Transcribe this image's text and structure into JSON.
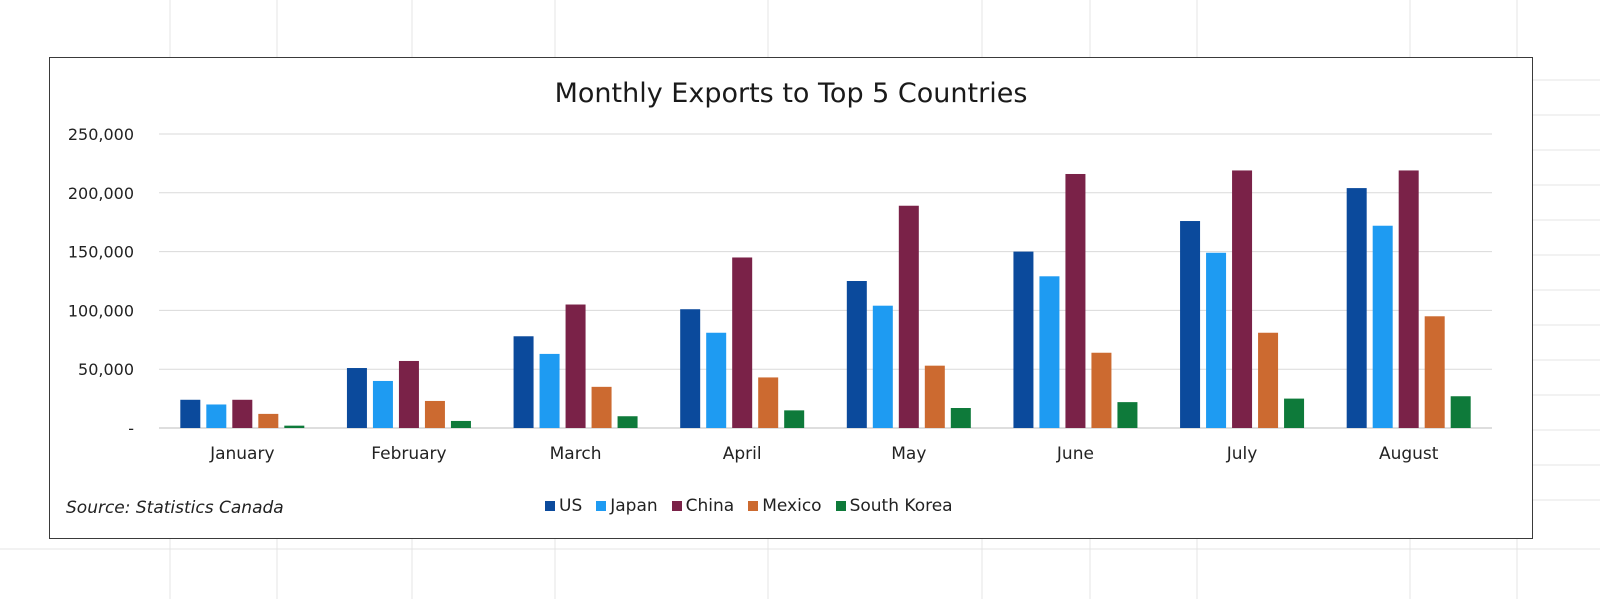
{
  "chart_data": {
    "type": "bar",
    "title": "Monthly Exports to Top 5 Countries",
    "source_note": "Source: Statistics Canada",
    "categories": [
      "January",
      "February",
      "March",
      "April",
      "May",
      "June",
      "July",
      "August"
    ],
    "y_tick_labels": [
      "-",
      "50,000",
      "100,000",
      "150,000",
      "200,000",
      "250,000"
    ],
    "y_tick_values": [
      0,
      50000,
      100000,
      150000,
      200000,
      250000
    ],
    "ylim": [
      0,
      250000
    ],
    "grid": true,
    "legend_position": "bottom",
    "series": [
      {
        "name": "US",
        "color": "#0b4a9c",
        "values": [
          24000,
          51000,
          78000,
          101000,
          125000,
          150000,
          176000,
          204000
        ]
      },
      {
        "name": "Japan",
        "color": "#1e9bf2",
        "values": [
          20000,
          40000,
          63000,
          81000,
          104000,
          129000,
          149000,
          172000
        ]
      },
      {
        "name": "China",
        "color": "#7a2248",
        "values": [
          24000,
          57000,
          105000,
          145000,
          189000,
          216000,
          219000,
          219000
        ]
      },
      {
        "name": "Mexico",
        "color": "#cc6a30",
        "values": [
          12000,
          23000,
          35000,
          43000,
          53000,
          64000,
          81000,
          95000
        ]
      },
      {
        "name": "South Korea",
        "color": "#0e7a3a",
        "values": [
          2000,
          6000,
          10000,
          15000,
          17000,
          22000,
          25000,
          27000
        ]
      }
    ]
  }
}
